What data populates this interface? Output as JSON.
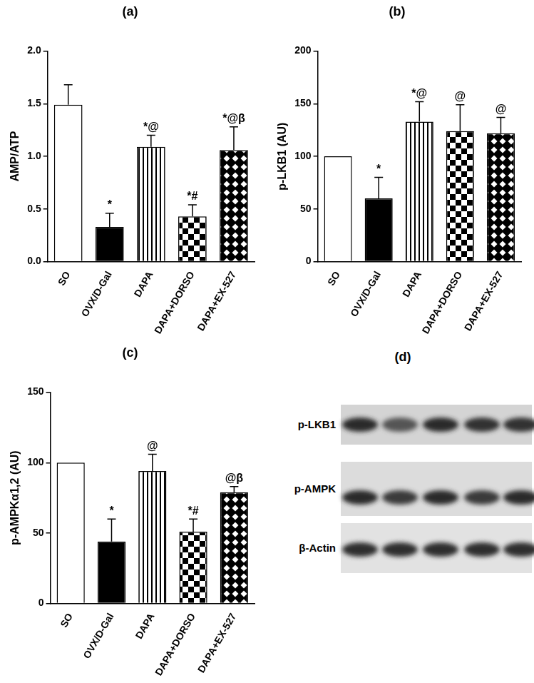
{
  "chart_data": [
    {
      "type": "bar",
      "title": "(a)",
      "y_label": "AMP/ATP",
      "categories": [
        "SO",
        "OVX/D-Gal",
        "DAPA",
        "DAPA+DORSO",
        "DAPA+EX-527"
      ],
      "values": [
        1.49,
        0.33,
        1.09,
        0.43,
        1.06
      ],
      "errors": [
        0.19,
        0.13,
        0.11,
        0.11,
        0.22
      ],
      "annotations": [
        null,
        "*",
        "*@",
        "*#",
        "*@β"
      ],
      "colors": [
        "#ffffff",
        "#000000",
        "#ffffff",
        "#ffffff",
        "#ffffff"
      ],
      "ylim": [
        0,
        2.0
      ],
      "yticks": [
        {
          "value": 0,
          "label": "0.0"
        },
        {
          "value": 0.5,
          "label": "0.5"
        },
        {
          "value": 1.0,
          "label": "1.0"
        },
        {
          "value": 1.5,
          "label": "1.5"
        },
        {
          "value": 2.0,
          "label": "2.0"
        }
      ],
      "grid": false
    },
    {
      "type": "bar",
      "title": "(b)",
      "y_label": "p-LKB1 (AU)",
      "categories": [
        "SO",
        "OVX/D-Gal",
        "DAPA",
        "DAPA+DORSO",
        "DAPA+EX-527"
      ],
      "values": [
        100,
        60,
        133,
        124,
        122
      ],
      "errors": [
        0,
        20,
        19,
        25,
        15
      ],
      "annotations": [
        null,
        "*",
        "*@",
        "@",
        "@"
      ],
      "colors": [
        "#ffffff",
        "#000000",
        "#ffffff",
        "#ffffff",
        "#ffffff"
      ],
      "ylim": [
        0,
        200
      ],
      "yticks": [
        0,
        50,
        100,
        150,
        200
      ],
      "grid": false
    },
    {
      "type": "bar",
      "title": "(c)",
      "y_label": "p-AMPKα1,2 (AU)",
      "categories": [
        "SO",
        "OVX/D-Gal",
        "DAPA",
        "DAPA+DORSO",
        "DAPA+EX-527"
      ],
      "values": [
        100,
        44,
        94,
        51,
        79
      ],
      "errors": [
        0,
        16,
        12,
        9,
        4
      ],
      "annotations": [
        null,
        "*",
        "@",
        "*#",
        "@β"
      ],
      "colors": [
        "#ffffff",
        "#000000",
        "#ffffff",
        "#ffffff",
        "#ffffff"
      ],
      "ylim": [
        0,
        150
      ],
      "yticks": [
        0,
        50,
        100,
        150
      ],
      "grid": false
    }
  ],
  "blot": {
    "title": "(d)",
    "rows": [
      "p-LKB1",
      "p-AMPK",
      "β-Actin"
    ]
  }
}
